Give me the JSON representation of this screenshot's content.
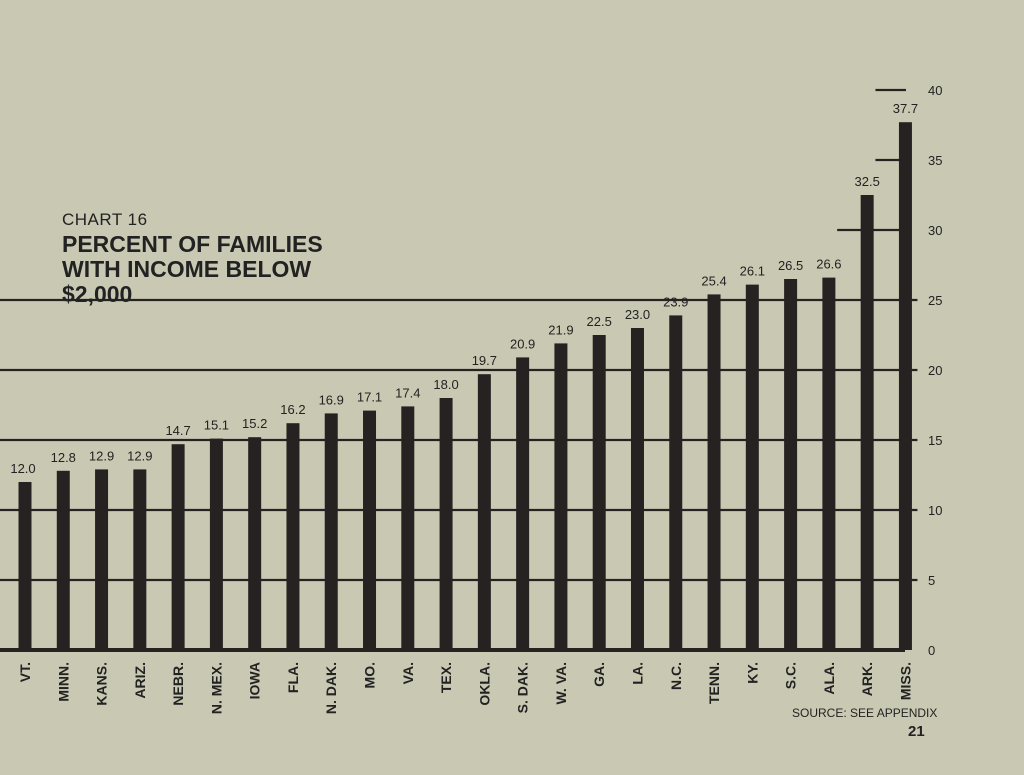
{
  "chart_data": {
    "type": "bar",
    "chart_number": "CHART 16",
    "title": "PERCENT OF FAMILIES WITH INCOME BELOW $2,000",
    "categories": [
      "VT.",
      "MINN.",
      "KANS.",
      "ARIZ.",
      "NEBR.",
      "N. MEX.",
      "IOWA",
      "FLA.",
      "N. DAK.",
      "MO.",
      "VA.",
      "TEX.",
      "OKLA.",
      "S. DAK.",
      "W. VA.",
      "GA.",
      "LA.",
      "N.C.",
      "TENN.",
      "KY.",
      "S.C.",
      "ALA.",
      "ARK.",
      "MISS."
    ],
    "values": [
      12.0,
      12.8,
      12.9,
      12.9,
      14.7,
      15.1,
      15.2,
      16.2,
      16.9,
      17.1,
      17.4,
      18.0,
      19.7,
      20.9,
      21.9,
      22.5,
      23.0,
      23.9,
      25.4,
      26.1,
      26.5,
      26.6,
      32.5,
      37.7
    ],
    "value_labels": [
      "12.0",
      "12.8",
      "12.9",
      "12.9",
      "14.7",
      "15.1",
      "15.2",
      "16.2",
      "16.9",
      "17.1",
      "17.4",
      "18.0",
      "19.7",
      "20.9",
      "21.9",
      "22.5",
      "23.0",
      "23.9",
      "25.4",
      "26.1",
      "26.5",
      "26.6",
      "32.5",
      "37.7"
    ],
    "yticks": [
      "0",
      "5",
      "10",
      "15",
      "20",
      "25",
      "30",
      "35",
      "40"
    ],
    "ylim": [
      0,
      40
    ],
    "y_axis_position": "right",
    "grid": true,
    "source": "SOURCE: SEE APPENDIX",
    "page_number": "21",
    "colors": {
      "bar": "#262222",
      "background": "#c9c9b3",
      "text": "#222222"
    }
  }
}
